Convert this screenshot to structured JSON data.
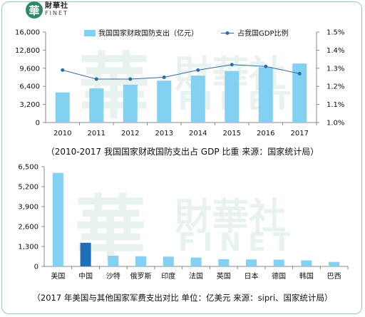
{
  "brand": {
    "mark": "華",
    "name_cn": "財華社",
    "name_en": "FINET",
    "watermark_mark": "華",
    "watermark_cn": "財華社",
    "watermark_en": "FINET"
  },
  "chart_data": [
    {
      "type": "bar",
      "categories": [
        "2010",
        "2011",
        "2012",
        "2013",
        "2014",
        "2015",
        "2016",
        "2017"
      ],
      "series": [
        {
          "name": "我国国家财政国防支出（亿元）",
          "type": "bar",
          "axis": "left",
          "values": [
            5333,
            6028,
            6692,
            7411,
            8290,
            9088,
            9766,
            10432
          ]
        },
        {
          "name": "占我国GDP比例",
          "type": "line",
          "axis": "right",
          "values": [
            1.29,
            1.24,
            1.24,
            1.25,
            1.29,
            1.32,
            1.31,
            1.27
          ]
        }
      ],
      "ylim": [
        0,
        16000
      ],
      "yticks": [
        "16,000",
        "12,800",
        "9,600",
        "6,400",
        "3,200",
        "0"
      ],
      "y2lim": [
        1.0,
        1.5
      ],
      "y2ticks": [
        "1.5%",
        "1.4%",
        "1.3%",
        "1.2%",
        "1.1%",
        "1.0%"
      ],
      "legend": "top",
      "colors": {
        "bar": "#82d0f2",
        "line": "#2b6cb0"
      },
      "caption": "（2010-2017 我国国家财政国防支出占 GDP 比重   来源：国家统计局）"
    },
    {
      "type": "bar",
      "categories": [
        "美国",
        "中国",
        "沙特",
        "俄罗斯",
        "印度",
        "法国",
        "英国",
        "日本",
        "德国",
        "韩国",
        "巴西"
      ],
      "values": [
        6098,
        1542,
        694,
        663,
        639,
        578,
        473,
        454,
        443,
        392,
        293
      ],
      "highlight_index": 1,
      "ylim": [
        0,
        6500
      ],
      "yticks": [
        "6,500",
        "5,200",
        "3,900",
        "2,600",
        "1,300",
        "0"
      ],
      "colors": {
        "bar": "#82d0f2",
        "highlight": "#1f6fb8"
      },
      "caption": "（2017 年美国与其他国家军费支出对比   单位：亿美元   来源：sipri、国家统计局）"
    }
  ]
}
